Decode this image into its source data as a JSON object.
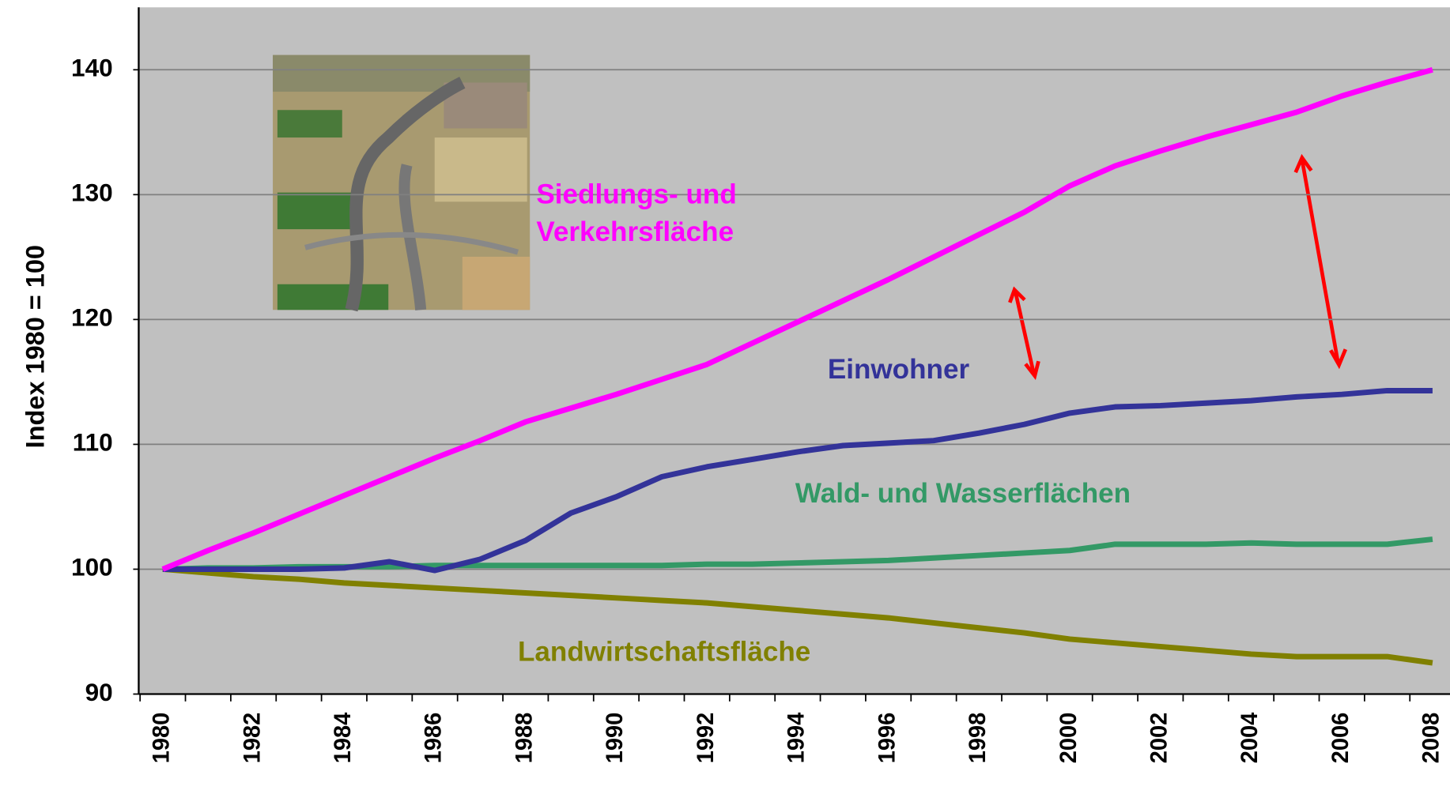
{
  "chart_data": {
    "type": "line",
    "y_label": "Index 1980 = 100",
    "categories": [
      "1980",
      null,
      "1982",
      null,
      "1984",
      null,
      "1986",
      null,
      "1988",
      null,
      "1990",
      null,
      "1992",
      null,
      "1994",
      null,
      "1996",
      null,
      "1998",
      null,
      "2000",
      null,
      "2002",
      null,
      "2004",
      null,
      "2006",
      null,
      "2008"
    ],
    "ylim": [
      90,
      145
    ],
    "yticks": [
      90,
      100,
      110,
      120,
      130,
      140
    ],
    "grid": true,
    "series": [
      {
        "name": "Siedlungs- und Verkehrsfläche",
        "color": "#ff00ff",
        "values": [
          100,
          101.5,
          102.9,
          104.4,
          105.9,
          107.4,
          108.9,
          110.3,
          111.8,
          112.9,
          114.0,
          115.2,
          116.4,
          118.1,
          119.8,
          121.5,
          123.2,
          125.0,
          126.8,
          128.6,
          130.7,
          132.3,
          133.5,
          134.6,
          135.6,
          136.6,
          137.9,
          139.0,
          140.0
        ]
      },
      {
        "name": "Einwohner",
        "color": "#333399",
        "values": [
          100,
          100.0,
          100.0,
          100.0,
          100.1,
          100.6,
          99.9,
          100.8,
          102.3,
          104.5,
          105.8,
          107.4,
          108.2,
          108.8,
          109.4,
          109.9,
          110.1,
          110.3,
          110.9,
          111.6,
          112.5,
          113.0,
          113.1,
          113.3,
          113.5,
          113.8,
          114.0,
          114.3,
          114.3
        ]
      },
      {
        "name": "Wald- und Wasserflächen",
        "color": "#339966",
        "values": [
          100,
          100.1,
          100.1,
          100.2,
          100.2,
          100.2,
          100.3,
          100.3,
          100.3,
          100.3,
          100.3,
          100.3,
          100.4,
          100.4,
          100.5,
          100.6,
          100.7,
          100.9,
          101.1,
          101.3,
          101.5,
          102.0,
          102.0,
          102.0,
          102.1,
          102.0,
          102.0,
          102.0,
          102.4
        ]
      },
      {
        "name": "Landwirtschaftsfläche",
        "color": "#808000",
        "values": [
          100,
          99.7,
          99.4,
          99.2,
          98.9,
          98.7,
          98.5,
          98.3,
          98.1,
          97.9,
          97.7,
          97.5,
          97.3,
          97.0,
          96.7,
          96.4,
          96.1,
          95.7,
          95.3,
          94.9,
          94.4,
          94.1,
          93.8,
          93.5,
          93.2,
          93.0,
          93.0,
          93.0,
          92.5
        ]
      }
    ]
  }
}
